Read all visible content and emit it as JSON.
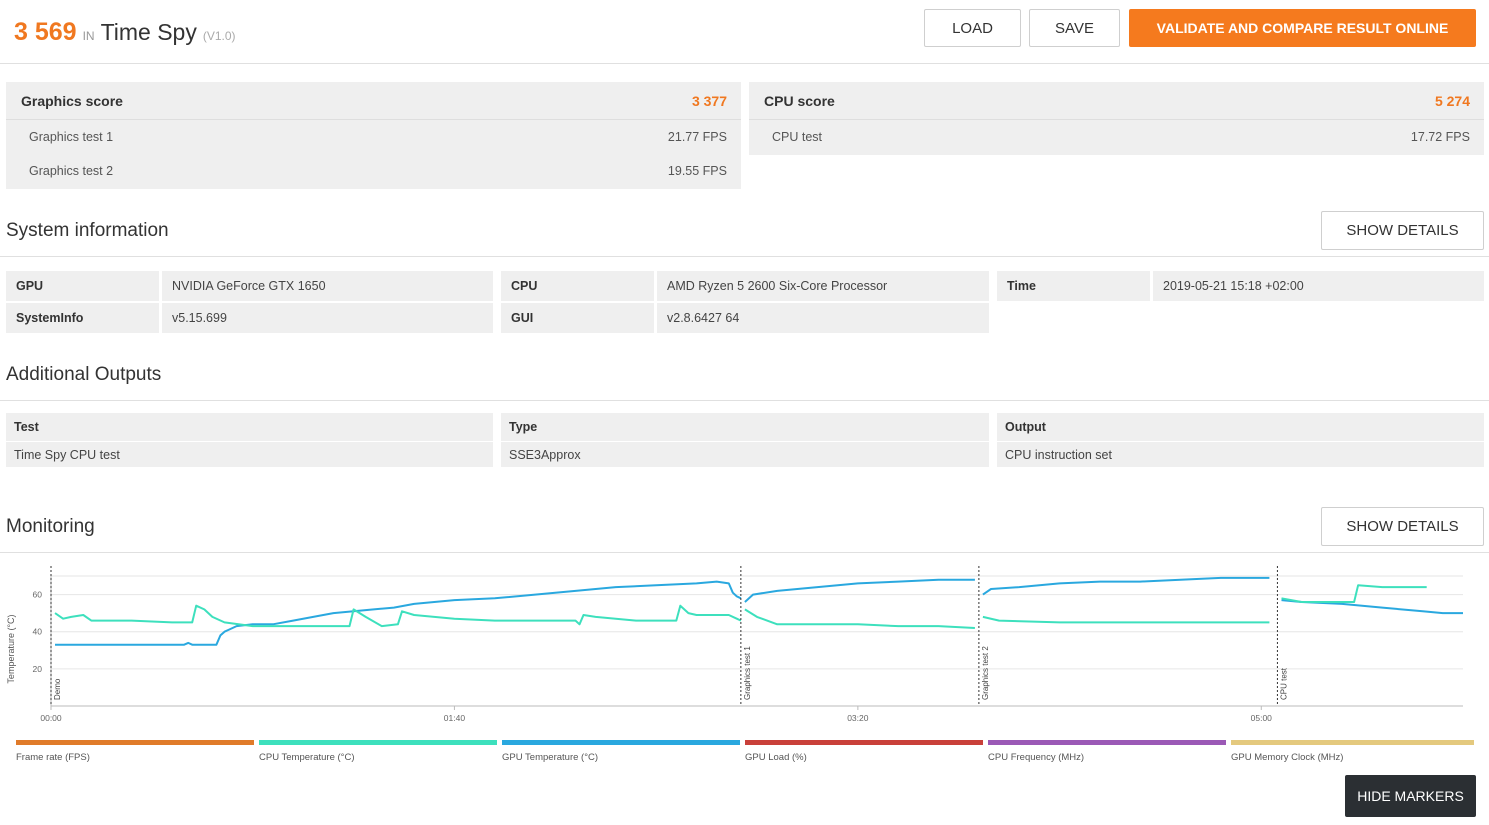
{
  "header": {
    "score": "3 569",
    "in_label": "IN",
    "benchmark": "Time Spy",
    "version": "(V1.0)",
    "load_label": "LOAD",
    "save_label": "SAVE",
    "validate_label": "VALIDATE AND COMPARE RESULT ONLINE"
  },
  "graphics": {
    "title": "Graphics score",
    "score": "3 377",
    "tests": [
      {
        "name": "Graphics test 1",
        "value": "21.77 FPS"
      },
      {
        "name": "Graphics test 2",
        "value": "19.55 FPS"
      }
    ]
  },
  "cpu": {
    "title": "CPU score",
    "score": "5 274",
    "tests": [
      {
        "name": "CPU test",
        "value": "17.72 FPS"
      }
    ]
  },
  "system_info": {
    "title": "System information",
    "show_details": "SHOW DETAILS",
    "rows": {
      "gpu_key": "GPU",
      "gpu_val": "NVIDIA GeForce GTX 1650",
      "cpu_key": "CPU",
      "cpu_val": "AMD Ryzen 5 2600 Six-Core Processor",
      "time_key": "Time",
      "time_val": "2019-05-21 15:18 +02:00",
      "sysinfo_key": "SystemInfo",
      "sysinfo_val": "v5.15.699",
      "gui_key": "GUI",
      "gui_val": "v2.8.6427 64"
    }
  },
  "additional_outputs": {
    "title": "Additional Outputs",
    "headers": [
      "Test",
      "Type",
      "Output"
    ],
    "row": [
      "Time Spy CPU test",
      "SSE3Approx",
      "CPU instruction set"
    ]
  },
  "monitoring": {
    "title": "Monitoring",
    "show_details": "SHOW DETAILS",
    "hide_markers": "HIDE MARKERS",
    "legend": [
      {
        "label": "Frame rate (FPS)",
        "color": "#e07b2a"
      },
      {
        "label": "CPU Temperature (°C)",
        "color": "#3de0bd"
      },
      {
        "label": "GPU Temperature (°C)",
        "color": "#2aa8df"
      },
      {
        "label": "GPU Load (%)",
        "color": "#c9403a"
      },
      {
        "label": "CPU Frequency (MHz)",
        "color": "#9b59b6"
      },
      {
        "label": "GPU Memory Clock (MHz)",
        "color": "#e4c97e"
      }
    ]
  },
  "chart_data": {
    "type": "line",
    "ylabel": "Temperature (°C)",
    "ylim": [
      0,
      70
    ],
    "yticks": [
      20,
      40,
      60
    ],
    "xticks": [
      "00:00",
      "01:40",
      "03:20",
      "05:00"
    ],
    "xlim_seconds": [
      0,
      350
    ],
    "markers": [
      {
        "label": "Demo",
        "t": 0
      },
      {
        "label": "Graphics test 1",
        "t": 171
      },
      {
        "label": "Graphics test 2",
        "t": 230
      },
      {
        "label": "CPU test",
        "t": 304
      }
    ],
    "series": [
      {
        "name": "GPU Temperature (°C)",
        "color": "#2aa8df",
        "segments": [
          [
            [
              1,
              33
            ],
            [
              20,
              33
            ],
            [
              33,
              33
            ],
            [
              34,
              34
            ],
            [
              35,
              33
            ],
            [
              41,
              33
            ],
            [
              42,
              38
            ],
            [
              43,
              40
            ],
            [
              44,
              41
            ],
            [
              46,
              43
            ],
            [
              50,
              44
            ],
            [
              55,
              44
            ],
            [
              60,
              46
            ],
            [
              65,
              48
            ],
            [
              70,
              50
            ],
            [
              75,
              51
            ],
            [
              80,
              52
            ],
            [
              85,
              53
            ],
            [
              90,
              55
            ],
            [
              95,
              56
            ],
            [
              100,
              57
            ],
            [
              110,
              58
            ],
            [
              120,
              60
            ],
            [
              130,
              62
            ],
            [
              140,
              64
            ],
            [
              150,
              65
            ],
            [
              160,
              66
            ],
            [
              165,
              67
            ],
            [
              168,
              66
            ],
            [
              169,
              61
            ],
            [
              170,
              59
            ],
            [
              171,
              58
            ]
          ],
          [
            [
              172,
              56
            ],
            [
              174,
              60
            ],
            [
              180,
              62
            ],
            [
              190,
              64
            ],
            [
              200,
              66
            ],
            [
              210,
              67
            ],
            [
              220,
              68
            ],
            [
              229,
              68
            ]
          ],
          [
            [
              231,
              60
            ],
            [
              233,
              63
            ],
            [
              240,
              64
            ],
            [
              250,
              66
            ],
            [
              260,
              67
            ],
            [
              270,
              67
            ],
            [
              280,
              68
            ],
            [
              290,
              69
            ],
            [
              302,
              69
            ]
          ],
          [
            [
              305,
              57
            ],
            [
              310,
              56
            ],
            [
              320,
              55
            ],
            [
              330,
              53
            ],
            [
              340,
              51
            ],
            [
              345,
              50
            ],
            [
              350,
              50
            ]
          ]
        ]
      },
      {
        "name": "CPU Temperature (°C)",
        "color": "#3de0bd",
        "segments": [
          [
            [
              1,
              50
            ],
            [
              3,
              47
            ],
            [
              5,
              48
            ],
            [
              8,
              49
            ],
            [
              10,
              46
            ],
            [
              20,
              46
            ],
            [
              30,
              45
            ],
            [
              35,
              45
            ],
            [
              36,
              54
            ],
            [
              38,
              52
            ],
            [
              40,
              48
            ],
            [
              43,
              45
            ],
            [
              50,
              43
            ],
            [
              60,
              43
            ],
            [
              70,
              43
            ],
            [
              74,
              43
            ],
            [
              75,
              52
            ],
            [
              78,
              48
            ],
            [
              82,
              43
            ],
            [
              86,
              44
            ],
            [
              87,
              51
            ],
            [
              90,
              49
            ],
            [
              100,
              47
            ],
            [
              110,
              46
            ],
            [
              120,
              46
            ],
            [
              130,
              46
            ],
            [
              131,
              44
            ],
            [
              132,
              49
            ],
            [
              135,
              48
            ],
            [
              145,
              46
            ],
            [
              155,
              46
            ],
            [
              156,
              54
            ],
            [
              158,
              50
            ],
            [
              160,
              49
            ],
            [
              168,
              49
            ],
            [
              170,
              47
            ],
            [
              171,
              46
            ]
          ],
          [
            [
              172,
              52
            ],
            [
              175,
              48
            ],
            [
              180,
              44
            ],
            [
              200,
              44
            ],
            [
              210,
              43
            ],
            [
              220,
              43
            ],
            [
              229,
              42
            ]
          ],
          [
            [
              231,
              48
            ],
            [
              235,
              46
            ],
            [
              250,
              45
            ],
            [
              260,
              45
            ],
            [
              270,
              45
            ],
            [
              280,
              45
            ],
            [
              290,
              45
            ],
            [
              302,
              45
            ]
          ],
          [
            [
              305,
              58
            ],
            [
              310,
              56
            ],
            [
              320,
              56
            ],
            [
              323,
              56
            ],
            [
              324,
              65
            ],
            [
              330,
              64
            ],
            [
              340,
              64
            ],
            [
              341,
              64
            ]
          ]
        ]
      }
    ]
  }
}
